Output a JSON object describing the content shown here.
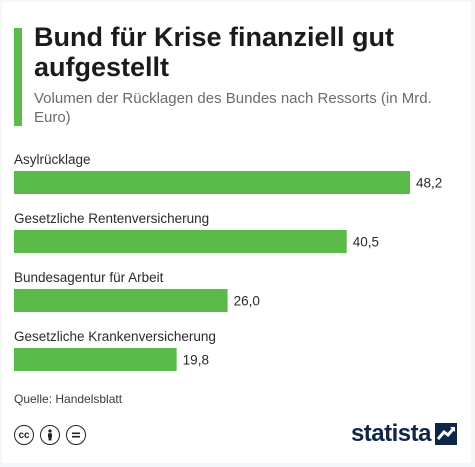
{
  "header": {
    "title": "Bund für Krise finanziell gut aufgestellt",
    "subtitle": "Volumen der Rücklagen des Bundes nach Ressorts (in Mrd. Euro)"
  },
  "colors": {
    "accent": "#5bbb4a",
    "bar": "#5bbb4a",
    "text": "#1b1b1b",
    "brand": "#0f2747"
  },
  "chart_data": {
    "type": "bar",
    "orientation": "horizontal",
    "title": "Bund für Krise finanziell gut aufgestellt",
    "subtitle": "Volumen der Rücklagen des Bundes nach Ressorts (in Mrd. Euro)",
    "categories": [
      "Asylrücklage",
      "Gesetzliche Rentenversicherung",
      "Bundesagentur für Arbeit",
      "Gesetzliche Krankenversicherung"
    ],
    "values": [
      48.2,
      40.5,
      26.0,
      19.8
    ],
    "value_labels": [
      "48,2",
      "40,5",
      "26,0",
      "19,8"
    ],
    "xlim": [
      0,
      48.2
    ],
    "grid": false,
    "legend": "none"
  },
  "footer": {
    "source": "Quelle: Handelsblatt",
    "license_icons": [
      "cc-icon",
      "by-icon",
      "nd-icon"
    ],
    "brand": "statista"
  }
}
